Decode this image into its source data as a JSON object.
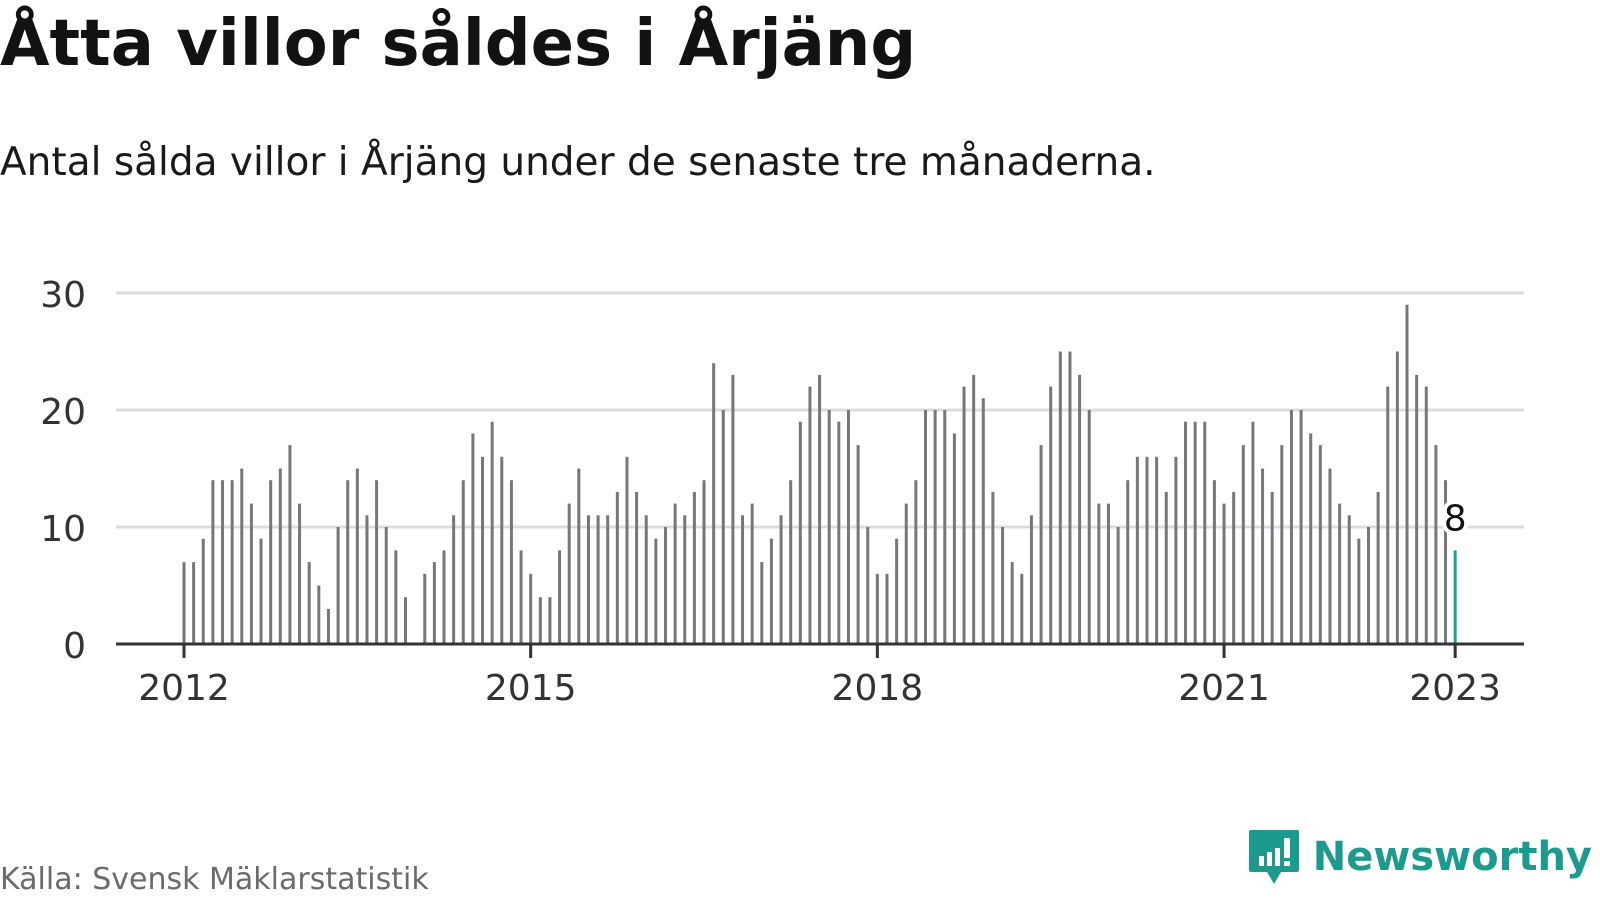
{
  "title": "Åtta villor såldes i Årjäng",
  "subtitle": "Antal sålda villor i Årjäng under de senaste tre månaderna.",
  "source": "Källa: Svensk Mäklarstatistik",
  "brand": {
    "name": "Newsworthy",
    "icon": "newsworthy-logo-icon"
  },
  "colors": {
    "bar": "#77767b",
    "highlight": "#15a497",
    "grid": "#dcdcdc",
    "axis": "#333333",
    "brand": "#1d9a8e"
  },
  "chart_data": {
    "type": "bar",
    "title": "Åtta villor såldes i Årjäng",
    "subtitle": "Antal sålda villor i Årjäng under de senaste tre månaderna.",
    "xlabel": "",
    "ylabel": "",
    "ylim": [
      0,
      30
    ],
    "yticks": [
      "0",
      "10",
      "20",
      "30"
    ],
    "xticks": [
      "2012",
      "2015",
      "2018",
      "2021",
      "2023"
    ],
    "grid": true,
    "legend": "none",
    "start_month": "2012-01",
    "end_month": "2023-01",
    "values": [
      7,
      7,
      9,
      14,
      14,
      14,
      15,
      12,
      9,
      14,
      15,
      17,
      12,
      7,
      5,
      3,
      10,
      14,
      15,
      11,
      14,
      10,
      8,
      4,
      0,
      6,
      7,
      8,
      11,
      14,
      18,
      16,
      19,
      16,
      14,
      8,
      6,
      4,
      4,
      8,
      12,
      15,
      11,
      11,
      11,
      13,
      16,
      13,
      11,
      9,
      10,
      12,
      11,
      13,
      14,
      24,
      20,
      23,
      11,
      12,
      7,
      9,
      11,
      14,
      19,
      22,
      23,
      20,
      19,
      20,
      17,
      10,
      6,
      6,
      9,
      12,
      14,
      20,
      20,
      20,
      18,
      22,
      23,
      21,
      13,
      10,
      7,
      6,
      11,
      17,
      22,
      25,
      25,
      23,
      20,
      12,
      12,
      10,
      14,
      16,
      16,
      16,
      13,
      16,
      19,
      19,
      19,
      14,
      12,
      13,
      17,
      19,
      15,
      13,
      17,
      20,
      20,
      18,
      17,
      15,
      12,
      11,
      9,
      10,
      13,
      22,
      25,
      29,
      23,
      22,
      17,
      14,
      8
    ],
    "highlight": {
      "date": "2023-01",
      "value": 8,
      "label": "8"
    }
  }
}
